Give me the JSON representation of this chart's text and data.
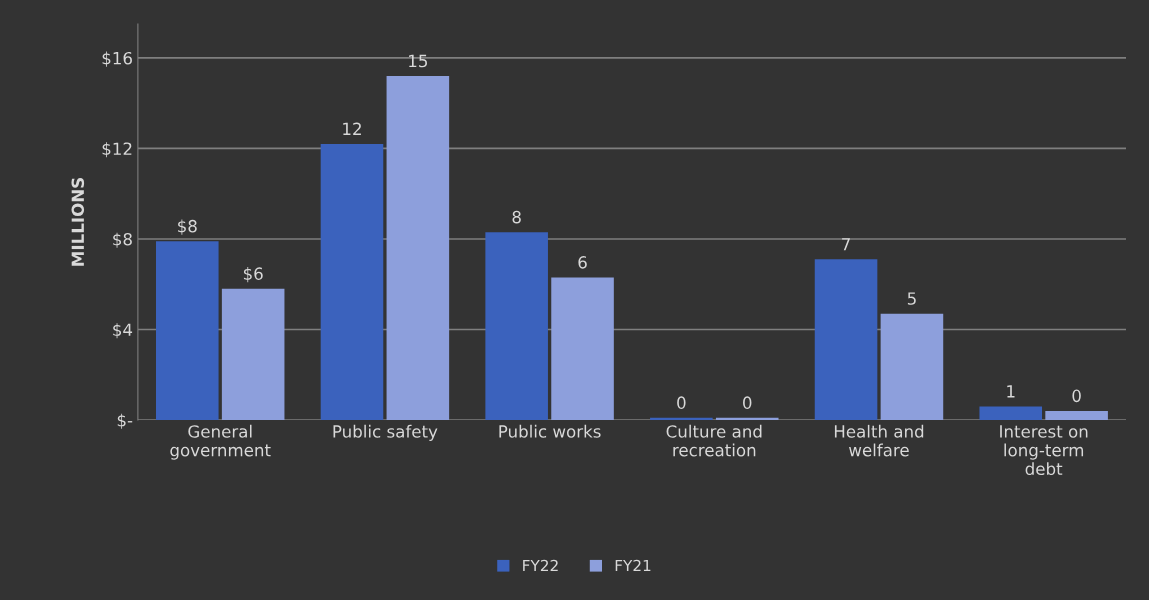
{
  "chart_data": {
    "type": "bar",
    "ylabel": "MILLIONS",
    "categories": [
      "General\ngovernment",
      "Public safety",
      "Public works",
      "Culture and\nrecreation",
      "Health and\nwelfare",
      "Interest on\nlong-term\ndebt"
    ],
    "series": [
      {
        "name": "FY22",
        "color": "#3b62bd",
        "values": [
          7.9,
          12.2,
          8.3,
          0.1,
          7.1,
          0.6
        ],
        "value_labels": [
          "$8",
          "12",
          "8",
          "0",
          "7",
          "1"
        ]
      },
      {
        "name": "FY21",
        "color": "#8d9fdc",
        "values": [
          5.8,
          15.2,
          6.3,
          0.1,
          4.7,
          0.4
        ],
        "value_labels": [
          "$6",
          "15",
          "6",
          "0",
          "5",
          "0"
        ]
      }
    ],
    "ylim": [
      0,
      17.5
    ],
    "yticks": [
      {
        "value": 0,
        "label": "$-"
      },
      {
        "value": 4,
        "label": "$4"
      },
      {
        "value": 8,
        "label": "$8"
      },
      {
        "value": 12,
        "label": "$12"
      },
      {
        "value": 16,
        "label": "$16"
      }
    ],
    "grid": "y",
    "legend": "bottom"
  }
}
